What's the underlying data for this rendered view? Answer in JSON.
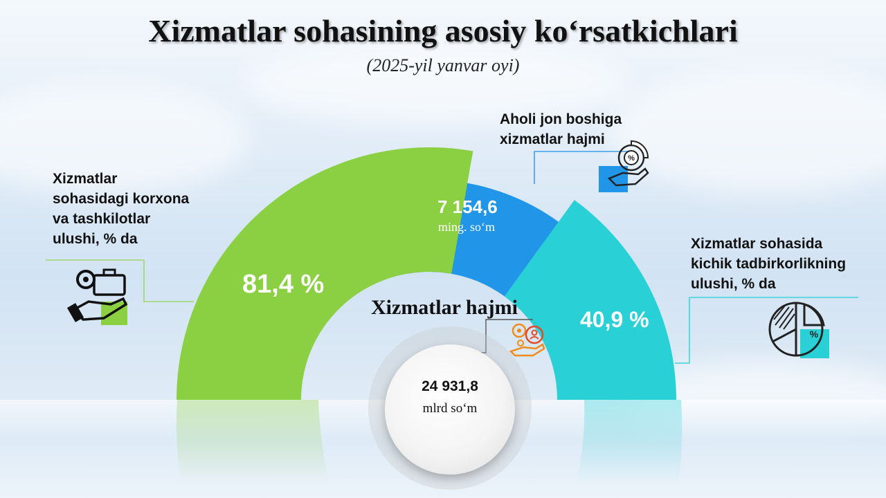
{
  "title": "Xizmatlar sohasining asosiy ko‘rsatkichlari",
  "subtitle": "(2025-yil yanvar oyi)",
  "left_indicator": {
    "label_lines": [
      "Xizmatlar",
      "sohasidagi korxona",
      "va tashkilotlar",
      "ulushi, % da"
    ],
    "value": "81,4 %",
    "color": "#8bd043",
    "icon": "hand-gears-briefcase-icon"
  },
  "top_indicator": {
    "label_lines": [
      "Aholi jon boshiga",
      "xizmatlar hajmi"
    ],
    "value": "7 154,6",
    "unit": "ming. so‘m",
    "color": "#2196e8",
    "icon": "hand-percent-chart-icon"
  },
  "right_indicator": {
    "label_lines": [
      "Xizmatlar sohasida",
      "kichik tadbirkorlikning",
      "ulushi, % da"
    ],
    "value": "40,9 %",
    "color": "#29d0d6",
    "icon": "pie-percent-icon"
  },
  "center": {
    "title": "Xizmatlar  hajmi",
    "value": "24 931,8",
    "unit": "mlrd so‘m",
    "icon": "hand-gears-people-icon"
  }
}
